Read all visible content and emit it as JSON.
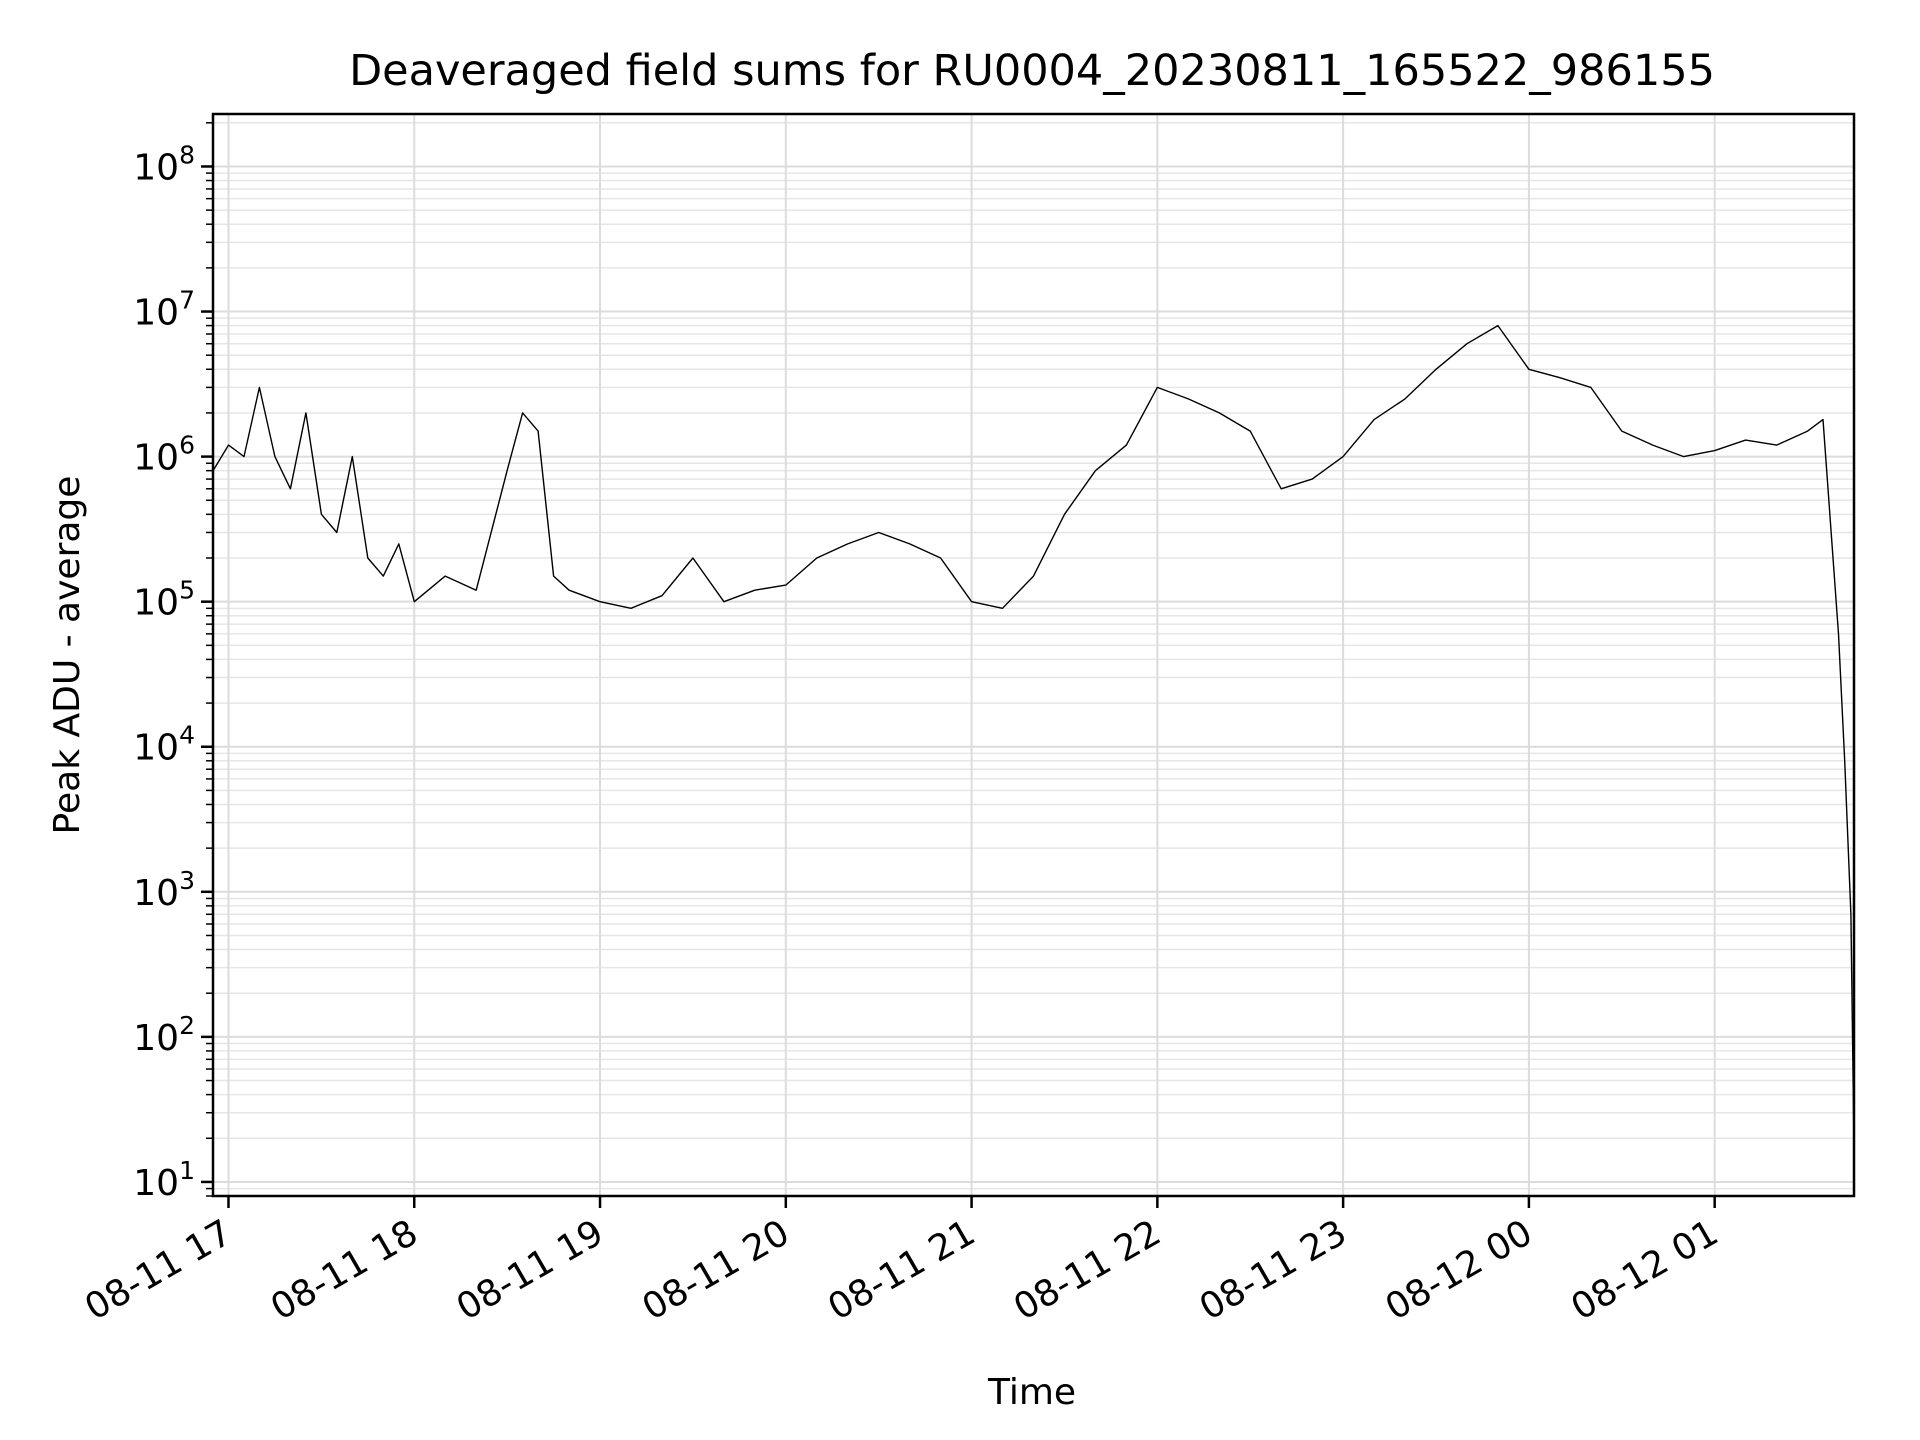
{
  "chart_data": {
    "type": "line",
    "title": "Deaveraged field sums for RU0004_20230811_165522_986155",
    "xlabel": "Time",
    "ylabel": "Peak ADU - average",
    "yscale": "log",
    "ylim": [
      8,
      230000000
    ],
    "xlim": [
      "2023-08-11 16:55",
      "2023-08-12 01:45"
    ],
    "grid": true,
    "x_ticks": [
      {
        "value": "2023-08-11 17:00",
        "label": "08-11 17"
      },
      {
        "value": "2023-08-11 18:00",
        "label": "08-11 18"
      },
      {
        "value": "2023-08-11 19:00",
        "label": "08-11 19"
      },
      {
        "value": "2023-08-11 20:00",
        "label": "08-11 20"
      },
      {
        "value": "2023-08-11 21:00",
        "label": "08-11 21"
      },
      {
        "value": "2023-08-11 22:00",
        "label": "08-11 22"
      },
      {
        "value": "2023-08-11 23:00",
        "label": "08-11 23"
      },
      {
        "value": "2023-08-12 00:00",
        "label": "08-12 00"
      },
      {
        "value": "2023-08-12 01:00",
        "label": "08-12 01"
      }
    ],
    "y_ticks": [
      {
        "value": 10,
        "base": "10",
        "exp": "1"
      },
      {
        "value": 100,
        "base": "10",
        "exp": "2"
      },
      {
        "value": 1000,
        "base": "10",
        "exp": "3"
      },
      {
        "value": 10000,
        "base": "10",
        "exp": "4"
      },
      {
        "value": 100000,
        "base": "10",
        "exp": "5"
      },
      {
        "value": 1000000,
        "base": "10",
        "exp": "6"
      },
      {
        "value": 10000000,
        "base": "10",
        "exp": "7"
      },
      {
        "value": 100000000,
        "base": "10",
        "exp": "8"
      }
    ],
    "series": [
      {
        "color": "#000000",
        "x": [
          "2023-08-11 16:55",
          "2023-08-11 17:00",
          "2023-08-11 17:05",
          "2023-08-11 17:10",
          "2023-08-11 17:15",
          "2023-08-11 17:20",
          "2023-08-11 17:25",
          "2023-08-11 17:30",
          "2023-08-11 17:35",
          "2023-08-11 17:40",
          "2023-08-11 17:45",
          "2023-08-11 17:50",
          "2023-08-11 17:55",
          "2023-08-11 18:00",
          "2023-08-11 18:10",
          "2023-08-11 18:20",
          "2023-08-11 18:30",
          "2023-08-11 18:35",
          "2023-08-11 18:40",
          "2023-08-11 18:45",
          "2023-08-11 18:50",
          "2023-08-11 19:00",
          "2023-08-11 19:10",
          "2023-08-11 19:20",
          "2023-08-11 19:30",
          "2023-08-11 19:40",
          "2023-08-11 19:50",
          "2023-08-11 20:00",
          "2023-08-11 20:10",
          "2023-08-11 20:20",
          "2023-08-11 20:30",
          "2023-08-11 20:40",
          "2023-08-11 20:50",
          "2023-08-11 21:00",
          "2023-08-11 21:10",
          "2023-08-11 21:20",
          "2023-08-11 21:30",
          "2023-08-11 21:40",
          "2023-08-11 21:50",
          "2023-08-11 22:00",
          "2023-08-11 22:10",
          "2023-08-11 22:20",
          "2023-08-11 22:30",
          "2023-08-11 22:40",
          "2023-08-11 22:50",
          "2023-08-11 23:00",
          "2023-08-11 23:10",
          "2023-08-11 23:20",
          "2023-08-11 23:30",
          "2023-08-11 23:40",
          "2023-08-11 23:50",
          "2023-08-12 00:00",
          "2023-08-12 00:10",
          "2023-08-12 00:20",
          "2023-08-12 00:30",
          "2023-08-12 00:40",
          "2023-08-12 00:50",
          "2023-08-12 01:00",
          "2023-08-12 01:10",
          "2023-08-12 01:20",
          "2023-08-12 01:30",
          "2023-08-12 01:35",
          "2023-08-12 01:40",
          "2023-08-12 01:42",
          "2023-08-12 01:44",
          "2023-08-12 01:45"
        ],
        "y": [
          800000,
          1200000,
          1000000,
          3000000,
          1000000,
          600000,
          2000000,
          400000,
          300000,
          1000000,
          200000,
          150000,
          250000,
          100000,
          150000,
          120000,
          800000,
          2000000,
          1500000,
          150000,
          120000,
          100000,
          90000,
          110000,
          200000,
          100000,
          120000,
          130000,
          200000,
          250000,
          300000,
          250000,
          200000,
          100000,
          90000,
          150000,
          400000,
          800000,
          1200000,
          3000000,
          2500000,
          2000000,
          1500000,
          600000,
          700000,
          1000000,
          1800000,
          2500000,
          4000000,
          6000000,
          8000000,
          4000000,
          3500000,
          3000000,
          1500000,
          1200000,
          1000000,
          1100000,
          1300000,
          1200000,
          1500000,
          1800000,
          60000,
          8000,
          700,
          17
        ]
      }
    ]
  }
}
